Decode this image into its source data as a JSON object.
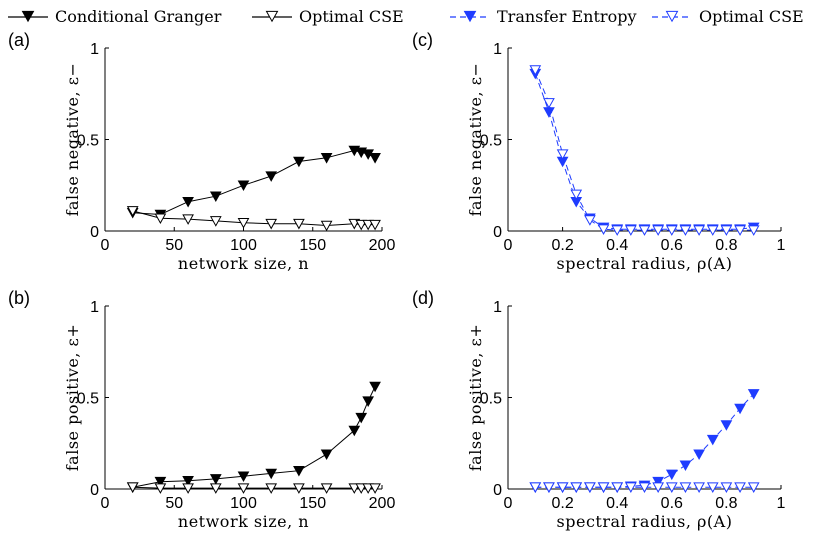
{
  "legend": [
    {
      "label": "Conditional Granger",
      "color": "#000000",
      "marker": "filled-down-triangle",
      "line": "solid"
    },
    {
      "label": "Optimal CSE",
      "color": "#000000",
      "marker": "open-down-triangle",
      "line": "solid"
    },
    {
      "label": "Transfer Entropy",
      "color": "#1f3cff",
      "marker": "filled-down-triangle",
      "line": "dashed"
    },
    {
      "label": "Optimal CSE",
      "color": "#1f3cff",
      "marker": "open-down-triangle",
      "line": "dashed"
    }
  ],
  "chart_data": [
    {
      "id": "a",
      "panel_label": "(a)",
      "type": "line",
      "xlabel": "network size, n",
      "ylabel": "false negative, ε−",
      "xlim": [
        0,
        200
      ],
      "ylim": [
        0,
        1
      ],
      "xticks": [
        "0",
        "50",
        "100",
        "150",
        "200"
      ],
      "yticks": [
        "0",
        "0.5",
        "1"
      ],
      "series": [
        {
          "name": "Conditional Granger",
          "color": "#000000",
          "marker": "filled",
          "dashed": false,
          "x": [
            20,
            40,
            60,
            80,
            100,
            120,
            140,
            160,
            180,
            185,
            190,
            195
          ],
          "y": [
            0.1,
            0.09,
            0.16,
            0.19,
            0.25,
            0.3,
            0.38,
            0.4,
            0.44,
            0.43,
            0.42,
            0.4
          ]
        },
        {
          "name": "Optimal CSE",
          "color": "#000000",
          "marker": "open",
          "dashed": false,
          "x": [
            20,
            40,
            60,
            80,
            100,
            120,
            140,
            160,
            180,
            185,
            190,
            195
          ],
          "y": [
            0.11,
            0.07,
            0.065,
            0.055,
            0.045,
            0.04,
            0.04,
            0.03,
            0.04,
            0.035,
            0.035,
            0.035
          ]
        }
      ]
    },
    {
      "id": "b",
      "panel_label": "(b)",
      "type": "line",
      "xlabel": "network size, n",
      "ylabel": "false positive, ε+",
      "xlim": [
        0,
        200
      ],
      "ylim": [
        0,
        1
      ],
      "xticks": [
        "0",
        "50",
        "100",
        "150",
        "200"
      ],
      "yticks": [
        "0",
        "0.5",
        "1"
      ],
      "series": [
        {
          "name": "Conditional Granger",
          "color": "#000000",
          "marker": "filled",
          "dashed": false,
          "x": [
            20,
            40,
            60,
            80,
            100,
            120,
            140,
            160,
            180,
            185,
            190,
            195
          ],
          "y": [
            0.01,
            0.04,
            0.045,
            0.055,
            0.07,
            0.085,
            0.1,
            0.19,
            0.32,
            0.39,
            0.48,
            0.56
          ]
        },
        {
          "name": "Optimal CSE",
          "color": "#000000",
          "marker": "open",
          "dashed": false,
          "x": [
            20,
            40,
            60,
            80,
            100,
            120,
            140,
            160,
            180,
            185,
            190,
            195
          ],
          "y": [
            0.01,
            0.005,
            0.005,
            0.005,
            0.005,
            0.005,
            0.005,
            0.005,
            0.005,
            0.005,
            0.005,
            0.005
          ]
        }
      ]
    },
    {
      "id": "c",
      "panel_label": "(c)",
      "type": "line",
      "xlabel": "spectral radius, ρ(A)",
      "ylabel": "false negative, ε−",
      "xlim": [
        0,
        1
      ],
      "ylim": [
        0,
        1
      ],
      "xticks": [
        "0",
        "0.2",
        "0.4",
        "0.6",
        "0.8",
        "1"
      ],
      "yticks": [
        "0",
        "0.5",
        "1"
      ],
      "series": [
        {
          "name": "Transfer Entropy",
          "color": "#1f3cff",
          "marker": "filled",
          "dashed": true,
          "x": [
            0.1,
            0.15,
            0.2,
            0.25,
            0.3,
            0.35,
            0.4,
            0.45,
            0.5,
            0.55,
            0.6,
            0.65,
            0.7,
            0.75,
            0.8,
            0.85,
            0.9
          ],
          "y": [
            0.86,
            0.65,
            0.38,
            0.16,
            0.07,
            0.02,
            0.01,
            0.01,
            0.01,
            0.01,
            0.01,
            0.01,
            0.01,
            0.01,
            0.01,
            0.01,
            0.02
          ]
        },
        {
          "name": "Optimal CSE",
          "color": "#1f3cff",
          "marker": "open",
          "dashed": true,
          "x": [
            0.1,
            0.15,
            0.2,
            0.25,
            0.3,
            0.35,
            0.4,
            0.45,
            0.5,
            0.55,
            0.6,
            0.65,
            0.7,
            0.75,
            0.8,
            0.85,
            0.9
          ],
          "y": [
            0.88,
            0.7,
            0.42,
            0.2,
            0.06,
            0.01,
            0.005,
            0.005,
            0.005,
            0.005,
            0.005,
            0.005,
            0.005,
            0.005,
            0.005,
            0.005,
            0.005
          ]
        }
      ]
    },
    {
      "id": "d",
      "panel_label": "(d)",
      "type": "line",
      "xlabel": "spectral radius, ρ(A)",
      "ylabel": "false positive, ε+",
      "xlim": [
        0,
        1
      ],
      "ylim": [
        0,
        1
      ],
      "xticks": [
        "0",
        "0.2",
        "0.4",
        "0.6",
        "0.8",
        "1"
      ],
      "yticks": [
        "0",
        "0.5",
        "1"
      ],
      "series": [
        {
          "name": "Transfer Entropy",
          "color": "#1f3cff",
          "marker": "filled",
          "dashed": true,
          "x": [
            0.1,
            0.15,
            0.2,
            0.25,
            0.3,
            0.35,
            0.4,
            0.45,
            0.5,
            0.55,
            0.6,
            0.65,
            0.7,
            0.75,
            0.8,
            0.85,
            0.9
          ],
          "y": [
            0.01,
            0.01,
            0.01,
            0.01,
            0.01,
            0.01,
            0.01,
            0.015,
            0.02,
            0.04,
            0.08,
            0.13,
            0.19,
            0.27,
            0.35,
            0.44,
            0.52
          ]
        },
        {
          "name": "Optimal CSE",
          "color": "#1f3cff",
          "marker": "open",
          "dashed": true,
          "x": [
            0.1,
            0.15,
            0.2,
            0.25,
            0.3,
            0.35,
            0.4,
            0.45,
            0.5,
            0.55,
            0.6,
            0.65,
            0.7,
            0.75,
            0.8,
            0.85,
            0.9
          ],
          "y": [
            0.01,
            0.01,
            0.01,
            0.01,
            0.01,
            0.01,
            0.01,
            0.01,
            0.01,
            0.01,
            0.01,
            0.01,
            0.01,
            0.01,
            0.01,
            0.01,
            0.01
          ]
        }
      ]
    }
  ]
}
